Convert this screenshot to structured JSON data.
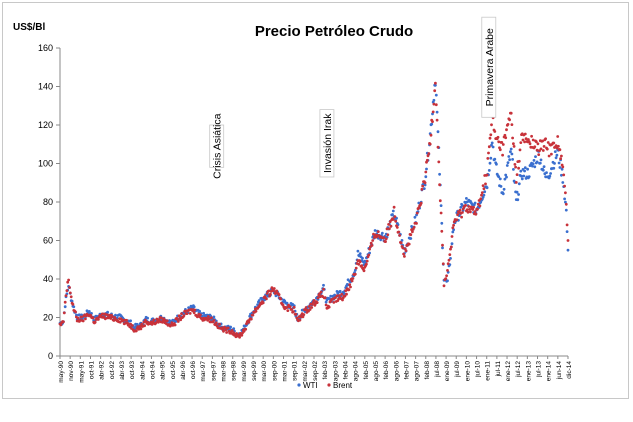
{
  "chart_data": {
    "type": "scatter",
    "title": "Precio Petróleo Crudo",
    "ylabel": "US$/Bl",
    "xlabel": "",
    "ylim": [
      0,
      160
    ],
    "yticks": [
      0,
      20,
      40,
      60,
      80,
      100,
      120,
      140,
      160
    ],
    "grid": false,
    "legend_position": "bottom-center",
    "x_tick_labels": [
      "may-90",
      "nov-90",
      "may-91",
      "oct-91",
      "abr-92",
      "oct-92",
      "abr-93",
      "oct-93",
      "abr-94",
      "oct-94",
      "abr-95",
      "oct-95",
      "abr-96",
      "oct-96",
      "mar-97",
      "sep-97",
      "mar-98",
      "sep-98",
      "mar-99",
      "sep-99",
      "mar-00",
      "sep-00",
      "mar-01",
      "sep-01",
      "mar-02",
      "sep-02",
      "feb-03",
      "ago-03",
      "feb-04",
      "ago-04",
      "feb-05",
      "ago-05",
      "feb-06",
      "ago-06",
      "feb-07",
      "ago-07",
      "feb-08",
      "jul-08",
      "ene-09",
      "jul-09",
      "ene-10",
      "jul-10",
      "ene-11",
      "jul-11",
      "ene-12",
      "jul-12",
      "ene-13",
      "jul-13",
      "ene-14",
      "jun-14",
      "dic-14"
    ],
    "series": [
      {
        "name": "WTI",
        "color": "#3a6fcf",
        "points": [
          [
            "1990-05",
            17
          ],
          [
            "1990-07",
            18
          ],
          [
            "1990-08",
            27
          ],
          [
            "1990-10",
            37
          ],
          [
            "1990-11",
            32
          ],
          [
            "1991-01",
            25
          ],
          [
            "1991-03",
            20
          ],
          [
            "1991-06",
            20
          ],
          [
            "1991-10",
            23
          ],
          [
            "1992-01",
            19
          ],
          [
            "1992-06",
            22
          ],
          [
            "1992-10",
            21
          ],
          [
            "1993-04",
            20
          ],
          [
            "1993-10",
            17
          ],
          [
            "1993-12",
            15
          ],
          [
            "1994-04",
            16
          ],
          [
            "1994-07",
            19
          ],
          [
            "1994-10",
            18
          ],
          [
            "1995-04",
            20
          ],
          [
            "1995-10",
            17
          ],
          [
            "1996-04",
            22
          ],
          [
            "1996-10",
            25
          ],
          [
            "1997-03",
            21
          ],
          [
            "1997-09",
            20
          ],
          [
            "1998-03",
            15
          ],
          [
            "1998-09",
            14
          ],
          [
            "1998-12",
            11
          ],
          [
            "1999-03",
            13
          ],
          [
            "1999-09",
            23
          ],
          [
            "2000-03",
            30
          ],
          [
            "2000-09",
            34
          ],
          [
            "2001-03",
            28
          ],
          [
            "2001-09",
            25
          ],
          [
            "2001-11",
            19
          ],
          [
            "2002-03",
            24
          ],
          [
            "2002-09",
            29
          ],
          [
            "2003-02",
            35
          ],
          [
            "2003-04",
            28
          ],
          [
            "2003-08",
            31
          ],
          [
            "2004-02",
            34
          ],
          [
            "2004-08",
            44
          ],
          [
            "2004-10",
            53
          ],
          [
            "2005-02",
            48
          ],
          [
            "2005-08",
            64
          ],
          [
            "2006-02",
            62
          ],
          [
            "2006-07",
            74
          ],
          [
            "2007-01",
            54
          ],
          [
            "2007-08",
            72
          ],
          [
            "2008-01",
            92
          ],
          [
            "2008-04",
            115
          ],
          [
            "2008-07",
            145
          ],
          [
            "2008-09",
            105
          ],
          [
            "2008-12",
            40
          ],
          [
            "2009-02",
            38
          ],
          [
            "2009-06",
            70
          ],
          [
            "2010-01",
            80
          ],
          [
            "2010-07",
            76
          ],
          [
            "2011-01",
            90
          ],
          [
            "2011-04",
            112
          ],
          [
            "2011-06",
            98
          ],
          [
            "2011-10",
            85
          ],
          [
            "2012-03",
            107
          ],
          [
            "2012-06",
            80
          ],
          [
            "2012-09",
            95
          ],
          [
            "2013-01",
            95
          ],
          [
            "2013-07",
            105
          ],
          [
            "2013-11",
            93
          ],
          [
            "2014-01",
            95
          ],
          [
            "2014-06",
            106
          ],
          [
            "2014-09",
            93
          ],
          [
            "2014-11",
            75
          ],
          [
            "2014-12",
            55
          ]
        ]
      },
      {
        "name": "Brent",
        "color": "#c8323a",
        "points": [
          [
            "1990-05",
            16
          ],
          [
            "1990-07",
            17
          ],
          [
            "1990-08",
            28
          ],
          [
            "1990-10",
            40
          ],
          [
            "1990-11",
            33
          ],
          [
            "1991-01",
            24
          ],
          [
            "1991-03",
            19
          ],
          [
            "1991-06",
            19
          ],
          [
            "1991-10",
            22
          ],
          [
            "1992-01",
            18
          ],
          [
            "1992-06",
            21
          ],
          [
            "1992-10",
            20
          ],
          [
            "1993-04",
            19
          ],
          [
            "1993-10",
            16
          ],
          [
            "1993-12",
            14
          ],
          [
            "1994-04",
            15
          ],
          [
            "1994-07",
            18
          ],
          [
            "1994-10",
            17
          ],
          [
            "1995-04",
            19
          ],
          [
            "1995-10",
            16
          ],
          [
            "1996-04",
            21
          ],
          [
            "1996-10",
            24
          ],
          [
            "1997-03",
            20
          ],
          [
            "1997-09",
            19
          ],
          [
            "1998-03",
            14
          ],
          [
            "1998-09",
            13
          ],
          [
            "1998-12",
            10
          ],
          [
            "1999-03",
            12
          ],
          [
            "1999-09",
            22
          ],
          [
            "2000-03",
            29
          ],
          [
            "2000-09",
            35
          ],
          [
            "2001-03",
            26
          ],
          [
            "2001-09",
            24
          ],
          [
            "2001-11",
            18
          ],
          [
            "2002-03",
            23
          ],
          [
            "2002-09",
            28
          ],
          [
            "2003-02",
            33
          ],
          [
            "2003-04",
            25
          ],
          [
            "2003-08",
            29
          ],
          [
            "2004-02",
            31
          ],
          [
            "2004-08",
            42
          ],
          [
            "2004-10",
            50
          ],
          [
            "2005-02",
            45
          ],
          [
            "2005-08",
            64
          ],
          [
            "2006-02",
            61
          ],
          [
            "2006-07",
            75
          ],
          [
            "2007-01",
            53
          ],
          [
            "2007-08",
            70
          ],
          [
            "2008-01",
            92
          ],
          [
            "2008-04",
            112
          ],
          [
            "2008-07",
            144
          ],
          [
            "2008-09",
            100
          ],
          [
            "2008-12",
            38
          ],
          [
            "2009-02",
            44
          ],
          [
            "2009-06",
            70
          ],
          [
            "2010-01",
            78
          ],
          [
            "2010-07",
            74
          ],
          [
            "2011-01",
            96
          ],
          [
            "2011-04",
            124
          ],
          [
            "2011-06",
            113
          ],
          [
            "2011-10",
            108
          ],
          [
            "2012-03",
            126
          ],
          [
            "2012-06",
            92
          ],
          [
            "2012-09",
            113
          ],
          [
            "2013-01",
            112
          ],
          [
            "2013-07",
            108
          ],
          [
            "2013-11",
            110
          ],
          [
            "2014-01",
            107
          ],
          [
            "2014-06",
            112
          ],
          [
            "2014-09",
            97
          ],
          [
            "2014-11",
            79
          ],
          [
            "2014-12",
            60
          ]
        ]
      }
    ],
    "annotations": [
      {
        "text": "Crisis Asiática",
        "x": "1997-12",
        "y_top": 120,
        "y_bottom": 98
      },
      {
        "text": "Invasión Irak",
        "x": "2003-04",
        "y_top": 128,
        "y_bottom": 93
      },
      {
        "text": "Primavera Arabe",
        "x": "2011-02",
        "y_top": 176,
        "y_bottom": 124
      }
    ]
  }
}
